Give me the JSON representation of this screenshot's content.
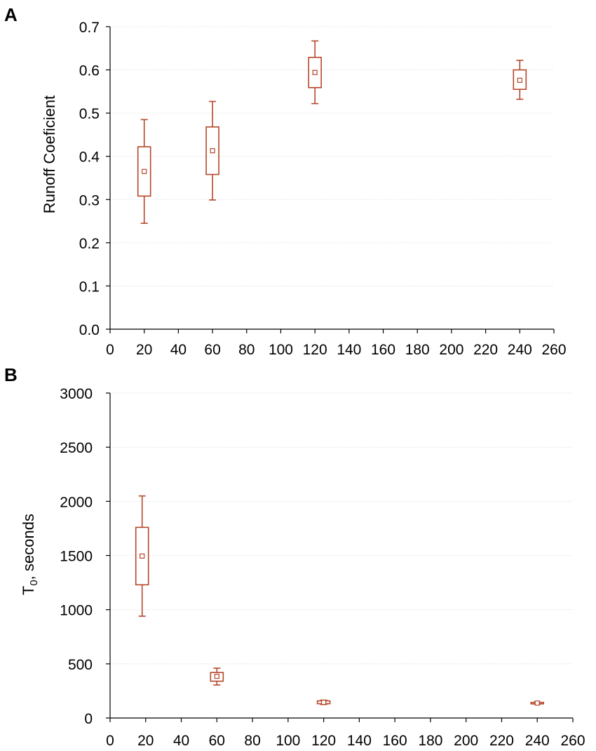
{
  "accent_color": "#b5472a",
  "chart_data": [
    {
      "type": "box",
      "panel_label": "A",
      "xlabel": "",
      "ylabel": "Runoff Coeficient",
      "xlim": [
        0,
        260
      ],
      "ylim": [
        0.0,
        0.7
      ],
      "x_ticks": [
        0,
        20,
        40,
        60,
        80,
        100,
        120,
        140,
        160,
        180,
        200,
        220,
        240,
        260
      ],
      "y_ticks": [
        0.0,
        0.1,
        0.2,
        0.3,
        0.4,
        0.5,
        0.6,
        0.7
      ],
      "y_tick_labels": [
        "0.0",
        "0.1",
        "0.2",
        "0.3",
        "0.4",
        "0.5",
        "0.6",
        "0.7"
      ],
      "grid": true,
      "boxes": [
        {
          "x": 20,
          "mean": 0.365,
          "q1": 0.308,
          "q3": 0.422,
          "min": 0.245,
          "max": 0.485
        },
        {
          "x": 60,
          "mean": 0.413,
          "q1": 0.358,
          "q3": 0.468,
          "min": 0.299,
          "max": 0.527
        },
        {
          "x": 120,
          "mean": 0.594,
          "q1": 0.559,
          "q3": 0.629,
          "min": 0.522,
          "max": 0.667
        },
        {
          "x": 240,
          "mean": 0.576,
          "q1": 0.555,
          "q3": 0.6,
          "min": 0.532,
          "max": 0.622
        }
      ]
    },
    {
      "type": "box",
      "panel_label": "B",
      "xlabel": "",
      "ylabel_main": "T",
      "ylabel_sub": "0",
      "ylabel_rest": ", seconds",
      "xlim": [
        0,
        260
      ],
      "ylim": [
        0,
        3000
      ],
      "x_ticks": [
        0,
        20,
        40,
        60,
        80,
        100,
        120,
        140,
        160,
        180,
        200,
        220,
        240,
        260
      ],
      "y_ticks": [
        0,
        500,
        1000,
        1500,
        2000,
        2500,
        3000
      ],
      "y_tick_labels": [
        "0",
        "500",
        "1000",
        "1500",
        "2000",
        "2500",
        "3000"
      ],
      "grid": true,
      "boxes": [
        {
          "x": 18,
          "mean": 1495,
          "q1": 1230,
          "q3": 1760,
          "min": 940,
          "max": 2050
        },
        {
          "x": 60,
          "mean": 385,
          "q1": 340,
          "q3": 420,
          "min": 305,
          "max": 460
        },
        {
          "x": 120,
          "mean": 145,
          "q1": 132,
          "q3": 158,
          "min": 125,
          "max": 165
        },
        {
          "x": 240,
          "mean": 138,
          "q1": 132,
          "q3": 144,
          "min": 128,
          "max": 148
        }
      ]
    }
  ]
}
